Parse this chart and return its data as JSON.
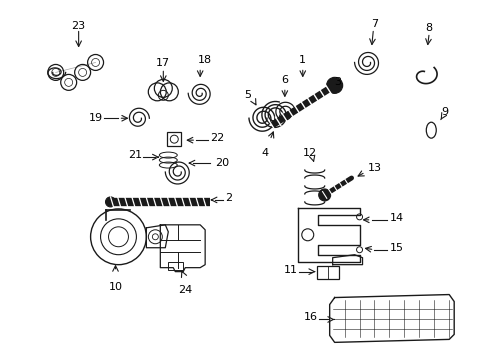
{
  "bg_color": "#ffffff",
  "line_color": "#1a1a1a",
  "text_color": "#000000",
  "figsize": [
    4.89,
    3.6
  ],
  "dpi": 100
}
